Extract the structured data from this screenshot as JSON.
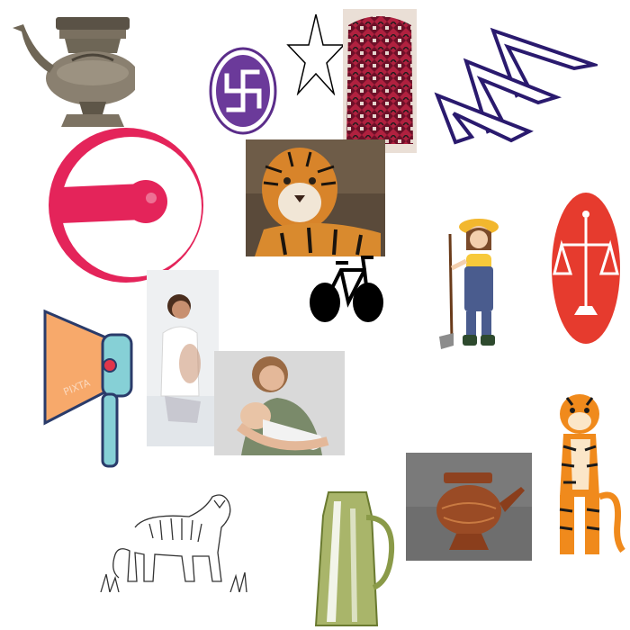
{
  "canvas": {
    "background": "#ffffff"
  },
  "items": [
    {
      "id": "metal-kettle",
      "icon": "ornate-metal-kettle-icon"
    },
    {
      "id": "swastika-emblem",
      "icon": "swastika-emblem-icon",
      "color": "#5b2d8a"
    },
    {
      "id": "star",
      "icon": "star-outline-icon"
    },
    {
      "id": "dhaka-cloth",
      "icon": "dhaka-cloth-cap-icon",
      "color": "#b0213f"
    },
    {
      "id": "arrow-logo",
      "icon": "chevron-arrows-logo-icon",
      "color": "#2a1a6e"
    },
    {
      "id": "pink-megaphone",
      "icon": "megaphone-circle-icon",
      "color": "#e4245a"
    },
    {
      "id": "tiger-photo",
      "icon": "tiger-photo-icon"
    },
    {
      "id": "bicycle",
      "icon": "bicycle-icon",
      "color": "#000000"
    },
    {
      "id": "farmer-girl",
      "icon": "farmer-girl-with-hoe-icon"
    },
    {
      "id": "scales-of-justice",
      "icon": "scales-of-justice-icon",
      "color": "#e63b2e"
    },
    {
      "id": "orange-megaphone",
      "icon": "orange-megaphone-icon",
      "color": "#f7a96b",
      "watermark": "PIXTA"
    },
    {
      "id": "woman-sitting",
      "icon": "woman-sitting-photo-icon"
    },
    {
      "id": "mother-baby",
      "icon": "mother-holding-baby-photo-icon"
    },
    {
      "id": "tiger-sketch",
      "icon": "tiger-line-drawing-icon"
    },
    {
      "id": "green-jug",
      "icon": "green-jug-icon",
      "color": "#a9b56a"
    },
    {
      "id": "copper-kettle",
      "icon": "copper-kettle-photo-icon",
      "color": "#9a4b25"
    },
    {
      "id": "tiger-standing",
      "icon": "standing-tiger-cartoon-icon",
      "color": "#f08a1c"
    }
  ]
}
